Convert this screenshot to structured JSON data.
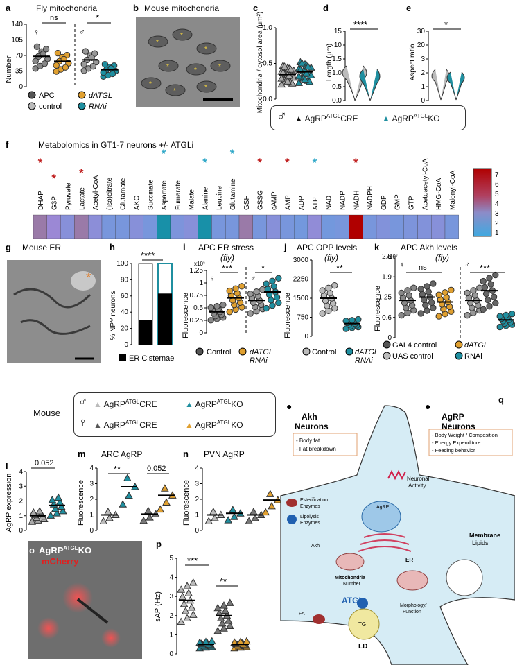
{
  "panel_letters": [
    "a",
    "b",
    "c",
    "d",
    "e",
    "f",
    "g",
    "h",
    "i",
    "j",
    "k",
    "l",
    "m",
    "n",
    "o",
    "p",
    "q"
  ],
  "a": {
    "title": "Fly mitochondria",
    "ylabel": "Number",
    "ticks": [
      "0",
      "35",
      "70",
      "105",
      "140"
    ],
    "ns": "ns",
    "star": "*",
    "legend": [
      {
        "label": "APC",
        "color": "#555555"
      },
      {
        "label": "control",
        "color": "#bbbbbb"
      },
      {
        "label": "dATGL",
        "color": "#e0a030"
      },
      {
        "label": "RNAi",
        "color": "#1f8fa0"
      }
    ],
    "chart_data": {
      "type": "scatter",
      "ylim": [
        0,
        140
      ],
      "groups": [
        {
          "name": "APC",
          "mean": 68
        },
        {
          "name": "dATGL",
          "mean": 57
        },
        {
          "name": "APC",
          "mean": 60
        },
        {
          "name": "dATGL",
          "mean": 38
        }
      ]
    }
  },
  "b": {
    "title": "Mouse mitochondria"
  },
  "c": {
    "ylabel": "Mitochondria / cytosol area (μm²)",
    "ticks": [
      "0.0",
      "0.5",
      "1.0"
    ],
    "chart_data": {
      "type": "scatter",
      "ylim": [
        0,
        1.1
      ],
      "groups": [
        {
          "mean": 0.38
        },
        {
          "mean": 0.42
        }
      ]
    }
  },
  "d": {
    "ylabel": "Length (μm)",
    "ticks": [
      "0.0",
      "0.5",
      "1.0",
      "1.5",
      "10",
      "15"
    ],
    "star": "****"
  },
  "e": {
    "ylabel": "Aspect ratio",
    "ticks": [
      "0",
      "1",
      "2",
      "3",
      "20",
      "30"
    ],
    "star": "*"
  },
  "legend_cde": {
    "left": "AgRP",
    "sup": "ATGL",
    "lcre": "CRE",
    "rko": "KO"
  },
  "f": {
    "title": "Metabolomics in GT1-7 neurons +/- ATGLi",
    "scale": [
      "1",
      "2",
      "3",
      "4",
      "5",
      "6",
      "7"
    ],
    "chart_data": {
      "type": "heatmap",
      "metabolites": [
        "DHAP",
        "G3P",
        "Pyruvate",
        "Lactate",
        "Acetyl-CoA",
        "(Iso)citrate",
        "Glutamate",
        "AKG",
        "Succinate",
        "Aspartate",
        "Fumarate",
        "Malate",
        "Alanine",
        "Leucine",
        "Glutamine",
        "GSH",
        "GSSG",
        "cAMP",
        "AMP",
        "ADP",
        "ATP",
        "NAD",
        "NADP",
        "NADH",
        "NADPH",
        "GDP",
        "GMP",
        "GTP",
        "Acetoacetyl-CoA",
        "HMG-CoA",
        "Malonyl-CoA"
      ],
      "values": [
        2.6,
        2.0,
        1.6,
        2.6,
        1.7,
        1.3,
        1.3,
        1.6,
        1.3,
        0.3,
        1.4,
        1.6,
        0.3,
        1.3,
        1.3,
        2.6,
        1.3,
        1.6,
        1.3,
        1.2,
        1.8,
        1.2,
        1.3,
        7.0,
        1.3,
        1.5,
        1.3,
        1.4,
        1.5,
        1.6,
        1.3
      ],
      "stars": [
        "red",
        "red",
        "",
        "red",
        "",
        "",
        "",
        "",
        "",
        "blue",
        "",
        "",
        "blue",
        "",
        "blue",
        "",
        "red",
        "",
        "red",
        "",
        "blue",
        "",
        "",
        "red",
        "",
        "",
        "",
        "",
        "",
        "",
        ""
      ]
    }
  },
  "g": {
    "title": "Mouse ER"
  },
  "h": {
    "ylabel": "% NPY neurons",
    "ticks": [
      "0",
      "20",
      "40",
      "60",
      "80",
      "100"
    ],
    "star": "****",
    "legend": "ER Cisternae",
    "chart_data": {
      "type": "bar",
      "values": [
        30,
        63
      ]
    }
  },
  "i": {
    "title": "APC ER stress",
    "sub": "(fly)",
    "ylabel": "Fluorescence",
    "exp": "x10³",
    "ticks": [
      "0",
      "0.25",
      "0.5",
      "0.75",
      "1",
      "1.25"
    ],
    "s1": "***",
    "s2": "*",
    "legend": [
      {
        "label": "Control"
      },
      {
        "label": "dATGL"
      },
      {
        "label": "RNAi"
      }
    ],
    "chart_data": {
      "type": "scatter",
      "groups": [
        {
          "mean": 0.42
        },
        {
          "mean": 0.7
        },
        {
          "mean": 0.65
        },
        {
          "mean": 0.82
        }
      ]
    }
  },
  "j": {
    "title": "APC OPP levels",
    "sub": "(fly)",
    "ylabel": "Fluorescence",
    "ticks": [
      "0",
      "750",
      "1500",
      "2250",
      "3000"
    ],
    "star": "**",
    "legend": [
      {
        "label": "Control"
      },
      {
        "label": "dATGL"
      },
      {
        "label": "RNAi"
      }
    ],
    "chart_data": {
      "type": "scatter",
      "groups": [
        {
          "mean": 1500
        },
        {
          "mean": 500
        }
      ]
    }
  },
  "k": {
    "title": "APC Akh levels",
    "sub": "(fly)",
    "ylabel": "Fluorescence",
    "exp": "x10⁷",
    "ticks": [
      "0",
      "0.6",
      "1.25",
      "1.9",
      "2.5"
    ],
    "ns": "ns",
    "star": "***",
    "legend": [
      {
        "label": "GAL4 control"
      },
      {
        "label": "UAS control"
      },
      {
        "label": "dATGL"
      },
      {
        "label": "RNAi"
      }
    ],
    "chart_data": {
      "type": "scatter",
      "groups": [
        {
          "mean": 1.15
        },
        {
          "mean": 1.25
        },
        {
          "mean": 1.1
        },
        {
          "mean": 1.15
        },
        {
          "mean": 1.45
        },
        {
          "mean": 0.55
        }
      ]
    }
  },
  "mouse_legend": {
    "label": "Mouse",
    "cre": "CRE",
    "ko": "KO",
    "agrp": "AgRP",
    "atgl": "ATGL"
  },
  "l": {
    "ylabel": "AgRP expression",
    "ticks": [
      "0",
      "1",
      "2",
      "3",
      "4"
    ],
    "pval": "0.052",
    "chart_data": {
      "type": "scatter",
      "groups": [
        {
          "mean": 1.0
        },
        {
          "mean": 1.7
        }
      ]
    }
  },
  "m": {
    "title": "ARC AgRP",
    "ylabel": "Fluorescence",
    "ticks": [
      "0",
      "1",
      "2",
      "3",
      "4"
    ],
    "s1": "**",
    "pval": "0.052",
    "chart_data": {
      "type": "scatter",
      "groups": [
        {
          "mean": 1.0
        },
        {
          "mean": 2.8
        },
        {
          "mean": 1.05
        },
        {
          "mean": 2.25
        }
      ]
    }
  },
  "n": {
    "title": "PVN AgRP",
    "ylabel": "Fluorescence",
    "ticks": [
      "0",
      "1",
      "2",
      "3",
      "4"
    ],
    "chart_data": {
      "type": "scatter",
      "groups": [
        {
          "mean": 1.0
        },
        {
          "mean": 1.1
        },
        {
          "mean": 1.0
        },
        {
          "mean": 1.95
        }
      ]
    }
  },
  "o": {
    "title_agrp": "AgRP",
    "title_sup": "ATGL",
    "title_ko": "KO",
    "mcherry": "mCherry"
  },
  "p": {
    "ylabel": "sAP (Hz)",
    "ticks": [
      "0",
      "1",
      "2",
      "3",
      "4",
      "5"
    ],
    "s1": "***",
    "s2": "**",
    "chart_data": {
      "type": "scatter",
      "groups": [
        {
          "mean": 2.8
        },
        {
          "mean": 0.5
        },
        {
          "mean": 2.0
        },
        {
          "mean": 0.5
        }
      ]
    }
  },
  "q": {
    "akh": "Akh",
    "neurons": "Neurons",
    "agrp": "AgRP",
    "akh_box": [
      "- Body fat",
      "- Fat breakdown"
    ],
    "agrp_box": [
      "- Body Weight / Composition",
      "- Energy Expenditure",
      "- Feeding behavior"
    ],
    "neuronal": "Neuronal",
    "activity": "Activity",
    "ester": "Esterification",
    "enz": "Enzymes",
    "lipo": "Lipolysis",
    "agrp_lbl": "AgRP",
    "akh_lbl": "Akh",
    "er": "ER",
    "membrane": "Membrane",
    "lipids": "Lipids",
    "mito": "Mitochondria",
    "number": "Number",
    "atgl": "ATGL",
    "morph": "Morphology/",
    "function": "Function",
    "fa": "FA",
    "tg": "TG",
    "ld": "LD"
  }
}
